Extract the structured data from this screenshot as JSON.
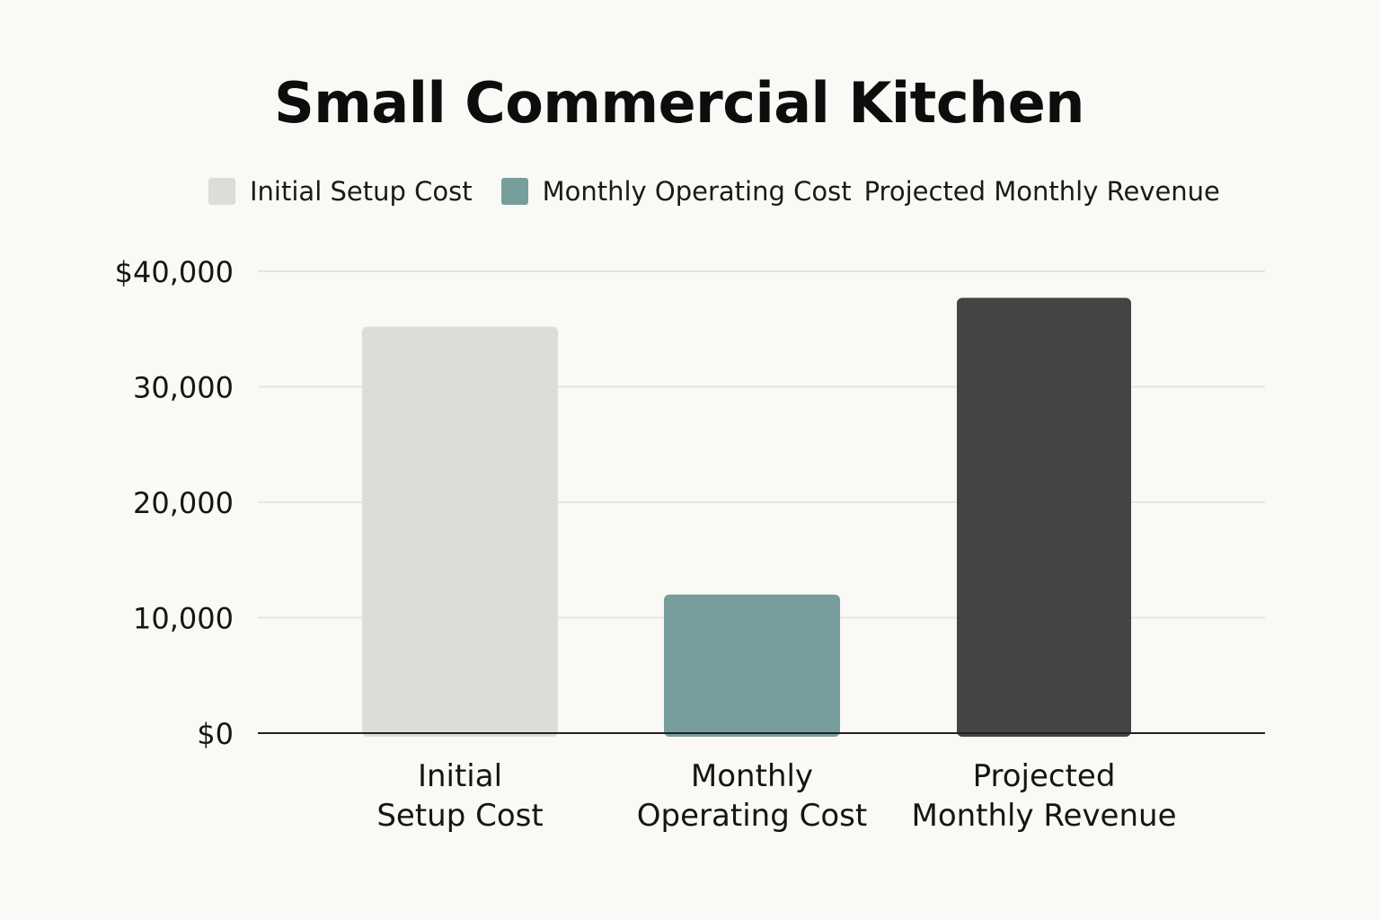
{
  "chart_data": {
    "type": "bar",
    "title": "Small Commercial Kitchen",
    "categories": [
      "Initial Setup Cost",
      "Monthly Operating Cost",
      "Projected Monthly Revenue"
    ],
    "category_tick_labels": [
      [
        "Initial",
        "Setup Cost"
      ],
      [
        "Monthly",
        "Operating Cost"
      ],
      [
        "Projected",
        "Monthly Revenue"
      ]
    ],
    "values": [
      35200,
      12000,
      37700
    ],
    "colors": [
      "#dddcd8",
      "#779e9d",
      "#444444"
    ],
    "legend": {
      "placement": "top",
      "entries": [
        {
          "label": "Initial Setup Cost",
          "color": "#dddcd8",
          "swatch": true
        },
        {
          "label": "Monthly Operating Cost",
          "color": "#779e9d",
          "swatch": true
        },
        {
          "label": "Projected Monthly Revenue",
          "color": "#444444",
          "swatch": false
        }
      ]
    },
    "y_ticks": [
      0,
      10000,
      20000,
      30000,
      40000
    ],
    "y_tick_labels": [
      "$0",
      "10,000",
      "20,000",
      "30,000",
      "$40,000"
    ],
    "ylim": [
      0,
      40000
    ],
    "xlabel": "",
    "ylabel": "",
    "grid": true
  }
}
